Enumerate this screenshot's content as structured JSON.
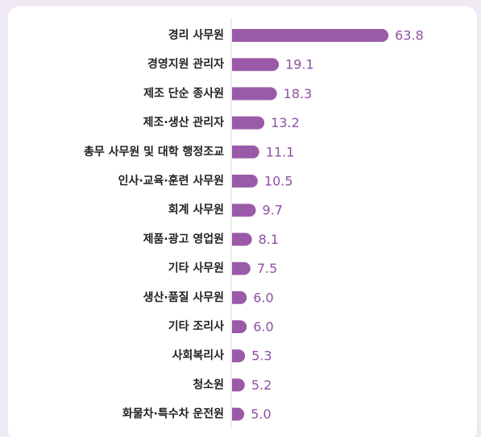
{
  "chart_data": {
    "type": "bar",
    "orientation": "horizontal",
    "categories": [
      "경리 사무원",
      "경영지원 관리자",
      "제조 단순 종사원",
      "제조·생산 관리자",
      "총무 사무원 및 대학 행정조교",
      "인사·교육·훈련 사무원",
      "회계 사무원",
      "제품·광고 영업원",
      "기타 사무원",
      "생산·품질 사무원",
      "기타 조리사",
      "사회복리사",
      "청소원",
      "화물차·특수차 운전원"
    ],
    "values": [
      63.8,
      19.1,
      18.3,
      13.2,
      11.1,
      10.5,
      9.7,
      8.1,
      7.5,
      6.0,
      6.0,
      5.3,
      5.2,
      5.0
    ],
    "value_labels": [
      "63.8",
      "19.1",
      "18.3",
      "13.2",
      "11.1",
      "10.5",
      "9.7",
      "8.1",
      "7.5",
      "6.0",
      "6.0",
      "5.3",
      "5.2",
      "5.0"
    ],
    "color": "#9b5aa8",
    "xlim": [
      0,
      70
    ]
  }
}
